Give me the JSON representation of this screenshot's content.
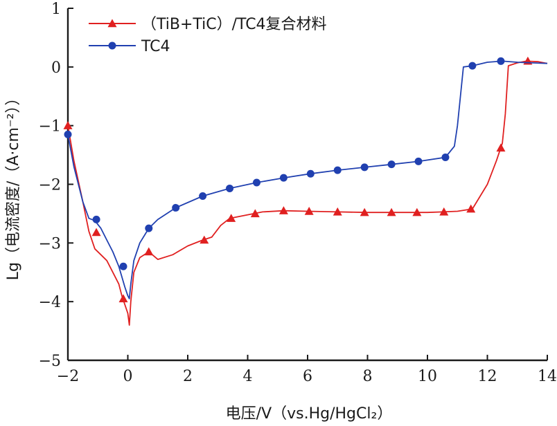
{
  "chart_data": {
    "type": "line",
    "xlabel": "电压/V（vs.Hg/HgCl₂）",
    "ylabel": "Lg（电流密度/（A·cm⁻²））",
    "xlim": [
      -2,
      14
    ],
    "ylim": [
      -5,
      1
    ],
    "xticks": [
      "−2",
      "0",
      "2",
      "4",
      "6",
      "8",
      "10",
      "12",
      "14"
    ],
    "yticks": [
      "−5",
      "−4",
      "−3",
      "−2",
      "−1",
      "0",
      "1"
    ],
    "legend_position": "top-left",
    "grid": false,
    "series": [
      {
        "name": "（TiB+TiC）/TC4复合材料",
        "color": "#e02020",
        "marker": "triangle",
        "x": [
          -2.0,
          -1.8,
          -1.5,
          -1.3,
          -1.1,
          -0.9,
          -0.7,
          -0.5,
          -0.3,
          -0.2,
          -0.1,
          0.0,
          0.05,
          0.1,
          0.2,
          0.4,
          0.7,
          1.0,
          1.5,
          2.0,
          2.5,
          2.8,
          3.1,
          3.4,
          4.0,
          4.5,
          5.2,
          6.0,
          7.0,
          8.0,
          9.0,
          10.0,
          10.5,
          11.0,
          11.5,
          12.0,
          12.3,
          12.5,
          12.6,
          12.7,
          13.0,
          13.3,
          13.7,
          14.0
        ],
        "y": [
          -1.0,
          -1.6,
          -2.3,
          -2.8,
          -3.1,
          -3.2,
          -3.3,
          -3.5,
          -3.7,
          -3.9,
          -4.05,
          -4.2,
          -4.4,
          -4.0,
          -3.5,
          -3.25,
          -3.15,
          -3.28,
          -3.2,
          -3.05,
          -2.95,
          -2.9,
          -2.7,
          -2.58,
          -2.52,
          -2.47,
          -2.45,
          -2.46,
          -2.47,
          -2.48,
          -2.48,
          -2.48,
          -2.47,
          -2.46,
          -2.42,
          -2.0,
          -1.6,
          -1.3,
          -0.8,
          0.02,
          0.07,
          0.1,
          0.09,
          0.06
        ],
        "marker_x": [
          -2.0,
          -1.05,
          -0.15,
          0.7,
          2.55,
          3.45,
          4.25,
          5.2,
          6.05,
          7.0,
          7.9,
          8.8,
          9.65,
          10.55,
          11.45,
          12.45,
          13.35
        ],
        "marker_y": [
          -1.0,
          -2.82,
          -3.95,
          -3.15,
          -2.95,
          -2.58,
          -2.5,
          -2.45,
          -2.46,
          -2.47,
          -2.48,
          -2.48,
          -2.48,
          -2.47,
          -2.42,
          -1.38,
          0.1
        ]
      },
      {
        "name": "TC4",
        "color": "#2040b0",
        "marker": "circle",
        "x": [
          -2.0,
          -1.8,
          -1.5,
          -1.3,
          -1.1,
          -0.9,
          -0.7,
          -0.5,
          -0.3,
          -0.1,
          0.0,
          0.05,
          0.1,
          0.2,
          0.4,
          0.7,
          1.0,
          1.6,
          2.5,
          3.4,
          4.3,
          5.2,
          6.1,
          7.0,
          7.9,
          8.8,
          9.7,
          10.6,
          10.9,
          11.0,
          11.1,
          11.2,
          11.5,
          12.0,
          12.5,
          13.0,
          13.5,
          14.0
        ],
        "y": [
          -1.15,
          -1.7,
          -2.3,
          -2.58,
          -2.62,
          -2.75,
          -2.95,
          -3.15,
          -3.4,
          -3.75,
          -3.9,
          -3.95,
          -3.7,
          -3.3,
          -3.0,
          -2.75,
          -2.6,
          -2.4,
          -2.2,
          -2.07,
          -1.97,
          -1.89,
          -1.82,
          -1.76,
          -1.71,
          -1.66,
          -1.61,
          -1.54,
          -1.35,
          -1.0,
          -0.5,
          0.0,
          0.02,
          0.08,
          0.1,
          0.08,
          0.07,
          0.06
        ],
        "marker_x": [
          -2.0,
          -1.05,
          -0.15,
          0.7,
          1.6,
          2.5,
          3.4,
          4.3,
          5.2,
          6.1,
          7.0,
          7.9,
          8.8,
          9.7,
          10.6,
          11.5,
          12.45
        ],
        "marker_y": [
          -1.15,
          -2.6,
          -3.4,
          -2.75,
          -2.4,
          -2.2,
          -2.07,
          -1.97,
          -1.89,
          -1.82,
          -1.76,
          -1.71,
          -1.66,
          -1.61,
          -1.54,
          0.02,
          0.1
        ]
      }
    ]
  }
}
